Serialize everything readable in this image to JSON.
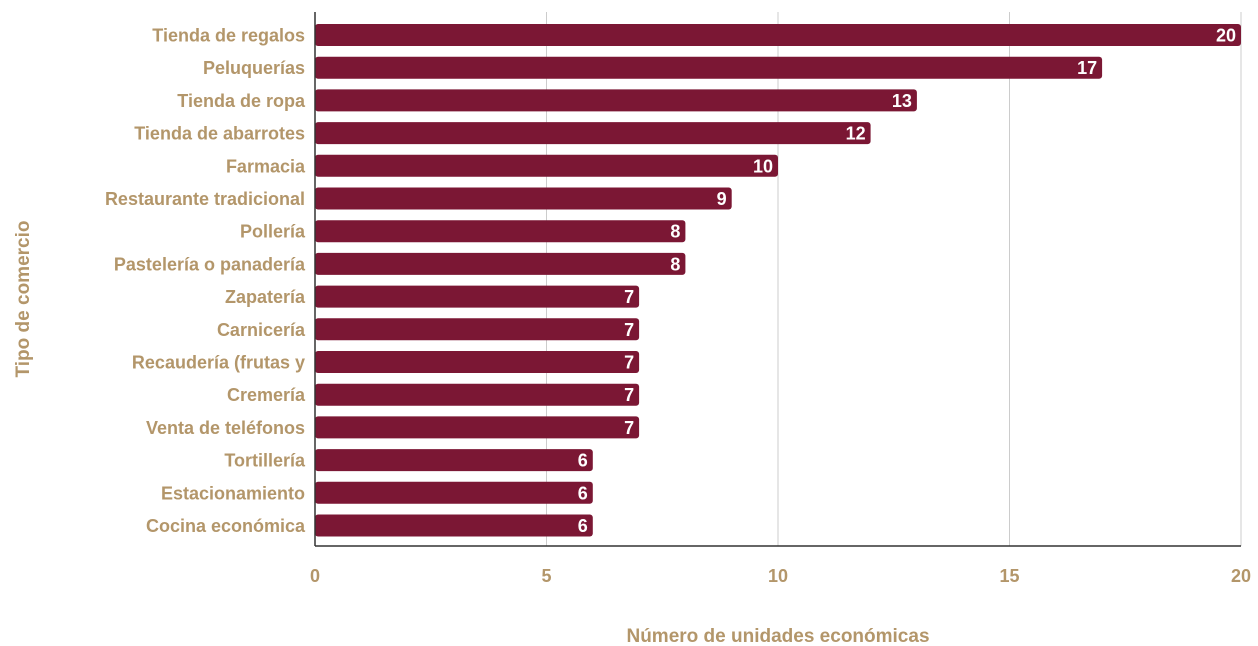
{
  "chart_data": {
    "type": "bar",
    "orientation": "horizontal",
    "categories": [
      "Tienda de regalos",
      "Peluquerías",
      "Tienda de ropa",
      "Tienda de abarrotes",
      "Farmacia",
      "Restaurante tradicional",
      "Pollería",
      "Pastelería o panadería",
      "Zapatería",
      "Carnicería",
      "Recaudería (frutas y",
      "Cremería",
      "Venta de teléfonos",
      "Tortillería",
      "Estacionamiento",
      "Cocina económica"
    ],
    "values": [
      20,
      17,
      13,
      12,
      10,
      9,
      8,
      8,
      7,
      7,
      7,
      7,
      7,
      6,
      6,
      6
    ],
    "xlabel": "Número de unidades económicas",
    "ylabel": "Tipo de comercio",
    "xlim": [
      0,
      20
    ],
    "xticks": [
      0,
      5,
      10,
      15,
      20
    ],
    "grid": true,
    "data_labels": true,
    "colors": {
      "bar": "#7b1734",
      "text": "#b3966a",
      "grid": "#cccccc",
      "axis": "#333333"
    }
  }
}
